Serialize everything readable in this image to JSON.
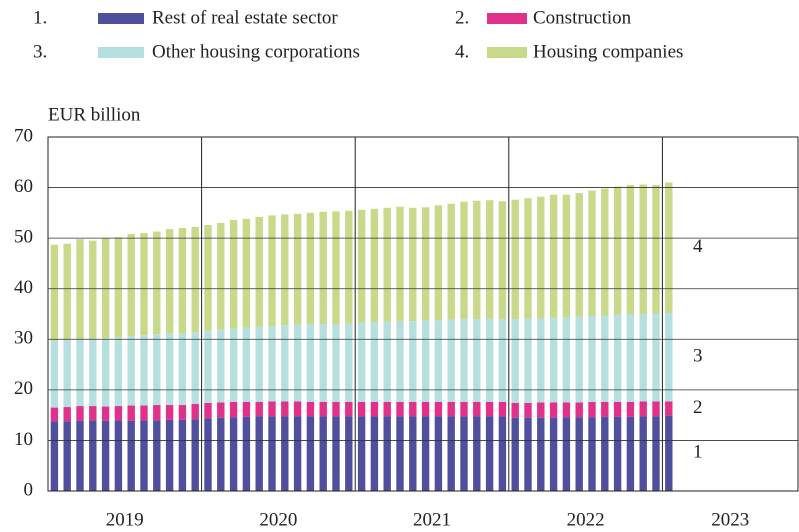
{
  "chart_data": {
    "type": "stacked_bar",
    "y_label": "EUR billion",
    "x_groups": [
      "2019",
      "2020",
      "2021",
      "2022",
      "2023"
    ],
    "group_size": 12,
    "categories": [
      null,
      null,
      null,
      null,
      null,
      null,
      null,
      null,
      null,
      null,
      null,
      null,
      null,
      null,
      null,
      null,
      null,
      null,
      null,
      null,
      null,
      null,
      null,
      null,
      null,
      null,
      null,
      null,
      null,
      null,
      null,
      null,
      null,
      null,
      null,
      null,
      null,
      null,
      null,
      null,
      null,
      null,
      null,
      null,
      null,
      null,
      null,
      null,
      null
    ],
    "ylim": [
      0,
      70
    ],
    "yticks": [
      0,
      10,
      20,
      30,
      40,
      50,
      60,
      70
    ],
    "grid": true,
    "series": [
      {
        "number": "1.",
        "label": "1",
        "name": "Rest of real estate sector",
        "color": "#4f4f9e",
        "values": [
          13.8,
          13.8,
          13.9,
          14.0,
          13.9,
          14.0,
          13.9,
          14.0,
          14.0,
          14.1,
          14.1,
          14.2,
          14.4,
          14.5,
          14.6,
          14.7,
          14.8,
          14.8,
          14.8,
          14.8,
          14.8,
          14.8,
          14.8,
          14.8,
          14.8,
          14.8,
          14.8,
          14.8,
          14.8,
          14.8,
          14.8,
          14.8,
          14.8,
          14.8,
          14.8,
          14.8,
          14.5,
          14.5,
          14.5,
          14.5,
          14.6,
          14.6,
          14.6,
          14.7,
          14.7,
          14.7,
          14.8,
          14.8,
          14.9
        ]
      },
      {
        "number": "2.",
        "label": "2",
        "name": "Construction",
        "color": "#e0328a",
        "values": [
          2.7,
          2.8,
          2.9,
          2.8,
          2.8,
          2.8,
          3.0,
          2.9,
          3.0,
          2.9,
          2.9,
          3.0,
          3.0,
          3.0,
          3.0,
          2.9,
          2.8,
          2.9,
          2.9,
          2.9,
          2.8,
          2.8,
          2.8,
          2.8,
          2.8,
          2.8,
          2.8,
          2.8,
          2.8,
          2.8,
          2.8,
          2.8,
          2.8,
          2.8,
          2.8,
          2.8,
          2.9,
          2.9,
          3.0,
          3.0,
          2.9,
          2.9,
          3.0,
          2.9,
          2.9,
          2.9,
          2.9,
          2.9,
          2.8
        ]
      },
      {
        "number": "3.",
        "label": "3",
        "name": "Other housing corporations",
        "color": "#b6e0e0",
        "values": [
          13.2,
          13.3,
          13.2,
          13.3,
          13.5,
          13.6,
          13.7,
          13.9,
          14.0,
          14.2,
          14.2,
          14.2,
          14.3,
          14.4,
          14.5,
          14.7,
          14.9,
          14.9,
          15.1,
          15.2,
          15.4,
          15.4,
          15.4,
          15.5,
          15.7,
          15.8,
          15.9,
          16.0,
          16.0,
          16.1,
          16.2,
          16.3,
          16.4,
          16.4,
          16.5,
          16.4,
          16.6,
          16.7,
          16.7,
          16.8,
          16.9,
          17.0,
          17.0,
          17.1,
          17.3,
          17.4,
          17.3,
          17.4,
          17.5
        ]
      },
      {
        "number": "4.",
        "label": "4",
        "name": "Housing companies",
        "color": "#c8d98a",
        "values": [
          19.0,
          19.0,
          19.8,
          19.4,
          19.8,
          19.8,
          20.2,
          20.2,
          20.3,
          20.6,
          20.8,
          20.8,
          20.9,
          21.1,
          21.5,
          21.5,
          21.7,
          21.9,
          21.9,
          21.9,
          22.0,
          22.2,
          22.3,
          22.3,
          22.3,
          22.4,
          22.5,
          22.6,
          22.4,
          22.4,
          22.7,
          22.9,
          23.2,
          23.4,
          23.4,
          23.3,
          23.6,
          23.8,
          24.0,
          24.3,
          24.2,
          24.4,
          24.8,
          25.1,
          25.3,
          25.5,
          25.6,
          25.4,
          25.8
        ]
      }
    ]
  }
}
